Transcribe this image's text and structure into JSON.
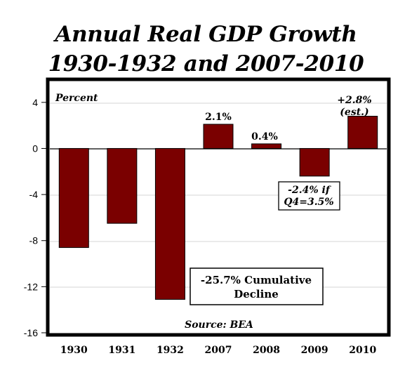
{
  "chart_data": {
    "type": "bar",
    "title_line1": "Annual Real GDP Growth",
    "title_line2": "1930-1932 and 2007-2010",
    "ylabel": "Percent",
    "source": "Source: BEA",
    "categories": [
      "1930",
      "1931",
      "1932",
      "2007",
      "2008",
      "2009",
      "2010"
    ],
    "values": [
      -8.6,
      -6.5,
      -13.1,
      2.1,
      0.4,
      -2.4,
      2.8
    ],
    "ylim": [
      -16,
      6
    ],
    "yticks": [
      4,
      0,
      -4,
      -8,
      -12,
      -16
    ],
    "bar_color": "#7a0000",
    "data_labels": {
      "2007": "2.1%",
      "2008": "0.4%",
      "2010_line1": "+2.8%",
      "2010_line2": "(est.)"
    },
    "annotations": {
      "q4_line1": "-2.4% if",
      "q4_line2": "Q4=3.5%",
      "cumulative_line1": "-25.7% Cumulative",
      "cumulative_line2": "Decline"
    }
  }
}
